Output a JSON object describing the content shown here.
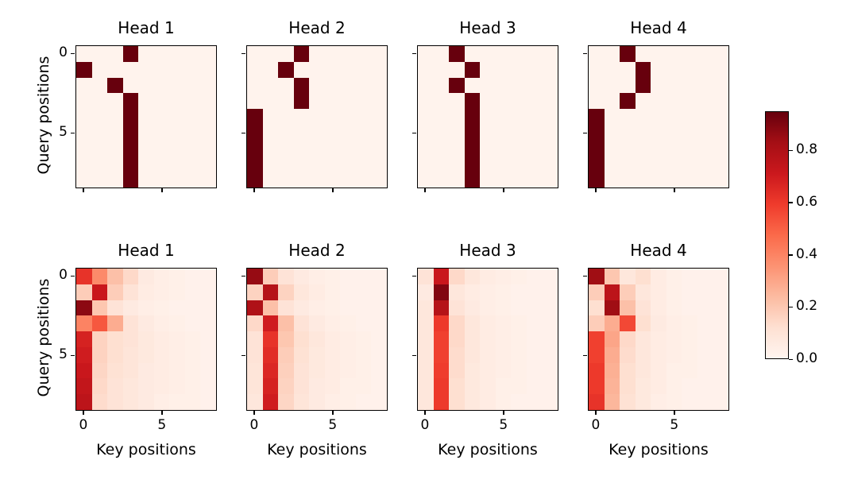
{
  "figure": {
    "background": "#ffffff",
    "type": "attention-heatmap-grid",
    "rows": 2,
    "cols": 4
  },
  "axes": {
    "ylabel": "Query positions",
    "xlabel": "Key positions",
    "xtick_labels": [
      "0",
      "5"
    ],
    "ytick_labels": [
      "0",
      "5"
    ],
    "xtick_positions": [
      0,
      5
    ],
    "ytick_positions": [
      0,
      5
    ],
    "n_rows": 9,
    "n_cols": 9
  },
  "colorbar": {
    "colormap": "Reds",
    "vmin": 0.0,
    "vmax": 0.95,
    "ticks": [
      {
        "label": "0.0",
        "value": 0.0
      },
      {
        "label": "0.2",
        "value": 0.2
      },
      {
        "label": "0.4",
        "value": 0.4
      },
      {
        "label": "0.6",
        "value": 0.6
      },
      {
        "label": "0.8",
        "value": 0.8
      }
    ]
  },
  "colors": {
    "cmap_stops": [
      [
        255,
        245,
        240
      ],
      [
        254,
        224,
        210
      ],
      [
        252,
        187,
        161
      ],
      [
        252,
        146,
        114
      ],
      [
        251,
        106,
        74
      ],
      [
        239,
        59,
        44
      ],
      [
        203,
        24,
        29
      ],
      [
        165,
        15,
        21
      ],
      [
        103,
        0,
        13
      ]
    ],
    "spine": "#000000"
  },
  "chart_data": [
    {
      "type": "heatmap",
      "title": "Head 1",
      "grid_row": 0,
      "grid_col": 0,
      "values": [
        [
          0.01,
          0.01,
          0.01,
          0.95,
          0.01,
          0.01,
          0.01,
          0.01,
          0.01
        ],
        [
          0.95,
          0.01,
          0.01,
          0.01,
          0.01,
          0.01,
          0.01,
          0.01,
          0.01
        ],
        [
          0.01,
          0.01,
          0.95,
          0.01,
          0.01,
          0.01,
          0.01,
          0.01,
          0.01
        ],
        [
          0.01,
          0.01,
          0.01,
          0.95,
          0.01,
          0.01,
          0.01,
          0.01,
          0.01
        ],
        [
          0.01,
          0.01,
          0.01,
          0.95,
          0.01,
          0.01,
          0.01,
          0.01,
          0.01
        ],
        [
          0.01,
          0.01,
          0.01,
          0.95,
          0.01,
          0.01,
          0.01,
          0.01,
          0.01
        ],
        [
          0.01,
          0.01,
          0.01,
          0.95,
          0.01,
          0.01,
          0.01,
          0.01,
          0.01
        ],
        [
          0.01,
          0.01,
          0.01,
          0.95,
          0.01,
          0.01,
          0.01,
          0.01,
          0.01
        ],
        [
          0.01,
          0.01,
          0.01,
          0.95,
          0.01,
          0.01,
          0.01,
          0.01,
          0.01
        ]
      ]
    },
    {
      "type": "heatmap",
      "title": "Head 2",
      "grid_row": 0,
      "grid_col": 1,
      "values": [
        [
          0.01,
          0.01,
          0.01,
          0.95,
          0.01,
          0.01,
          0.01,
          0.01,
          0.01
        ],
        [
          0.01,
          0.01,
          0.95,
          0.01,
          0.01,
          0.01,
          0.01,
          0.01,
          0.01
        ],
        [
          0.01,
          0.01,
          0.01,
          0.95,
          0.01,
          0.01,
          0.01,
          0.01,
          0.01
        ],
        [
          0.01,
          0.01,
          0.01,
          0.95,
          0.01,
          0.01,
          0.01,
          0.01,
          0.01
        ],
        [
          0.95,
          0.01,
          0.01,
          0.01,
          0.01,
          0.01,
          0.01,
          0.01,
          0.01
        ],
        [
          0.95,
          0.01,
          0.01,
          0.01,
          0.01,
          0.01,
          0.01,
          0.01,
          0.01
        ],
        [
          0.95,
          0.01,
          0.01,
          0.01,
          0.01,
          0.01,
          0.01,
          0.01,
          0.01
        ],
        [
          0.95,
          0.01,
          0.01,
          0.01,
          0.01,
          0.01,
          0.01,
          0.01,
          0.01
        ],
        [
          0.95,
          0.01,
          0.01,
          0.01,
          0.01,
          0.01,
          0.01,
          0.01,
          0.01
        ]
      ]
    },
    {
      "type": "heatmap",
      "title": "Head 3",
      "grid_row": 0,
      "grid_col": 2,
      "values": [
        [
          0.01,
          0.01,
          0.95,
          0.01,
          0.01,
          0.01,
          0.01,
          0.01,
          0.01
        ],
        [
          0.01,
          0.01,
          0.01,
          0.95,
          0.01,
          0.01,
          0.01,
          0.01,
          0.01
        ],
        [
          0.01,
          0.01,
          0.95,
          0.01,
          0.01,
          0.01,
          0.01,
          0.01,
          0.01
        ],
        [
          0.01,
          0.01,
          0.01,
          0.95,
          0.01,
          0.01,
          0.01,
          0.01,
          0.01
        ],
        [
          0.01,
          0.01,
          0.01,
          0.95,
          0.01,
          0.01,
          0.01,
          0.01,
          0.01
        ],
        [
          0.01,
          0.01,
          0.01,
          0.95,
          0.01,
          0.01,
          0.01,
          0.01,
          0.01
        ],
        [
          0.01,
          0.01,
          0.01,
          0.95,
          0.01,
          0.01,
          0.01,
          0.01,
          0.01
        ],
        [
          0.01,
          0.01,
          0.01,
          0.95,
          0.01,
          0.01,
          0.01,
          0.01,
          0.01
        ],
        [
          0.01,
          0.01,
          0.01,
          0.95,
          0.01,
          0.01,
          0.01,
          0.01,
          0.01
        ]
      ]
    },
    {
      "type": "heatmap",
      "title": "Head 4",
      "grid_row": 0,
      "grid_col": 3,
      "values": [
        [
          0.01,
          0.01,
          0.95,
          0.01,
          0.01,
          0.01,
          0.01,
          0.01,
          0.01
        ],
        [
          0.01,
          0.01,
          0.01,
          0.95,
          0.01,
          0.01,
          0.01,
          0.01,
          0.01
        ],
        [
          0.01,
          0.01,
          0.01,
          0.95,
          0.01,
          0.01,
          0.01,
          0.01,
          0.01
        ],
        [
          0.01,
          0.01,
          0.95,
          0.01,
          0.01,
          0.01,
          0.01,
          0.01,
          0.01
        ],
        [
          0.95,
          0.01,
          0.01,
          0.01,
          0.01,
          0.01,
          0.01,
          0.01,
          0.01
        ],
        [
          0.95,
          0.01,
          0.01,
          0.01,
          0.01,
          0.01,
          0.01,
          0.01,
          0.01
        ],
        [
          0.95,
          0.01,
          0.01,
          0.01,
          0.01,
          0.01,
          0.01,
          0.01,
          0.01
        ],
        [
          0.95,
          0.01,
          0.01,
          0.01,
          0.01,
          0.01,
          0.01,
          0.01,
          0.01
        ],
        [
          0.95,
          0.01,
          0.01,
          0.01,
          0.01,
          0.01,
          0.01,
          0.01,
          0.01
        ]
      ]
    },
    {
      "type": "heatmap",
      "title": "Head 1",
      "grid_row": 1,
      "grid_col": 0,
      "values": [
        [
          0.62,
          0.38,
          0.22,
          0.14,
          0.06,
          0.04,
          0.03,
          0.02,
          0.02
        ],
        [
          0.18,
          0.72,
          0.18,
          0.1,
          0.05,
          0.04,
          0.03,
          0.02,
          0.02
        ],
        [
          0.88,
          0.2,
          0.1,
          0.06,
          0.04,
          0.03,
          0.02,
          0.02,
          0.02
        ],
        [
          0.4,
          0.52,
          0.28,
          0.1,
          0.06,
          0.04,
          0.03,
          0.02,
          0.02
        ],
        [
          0.68,
          0.16,
          0.12,
          0.1,
          0.07,
          0.05,
          0.04,
          0.03,
          0.02
        ],
        [
          0.7,
          0.16,
          0.12,
          0.09,
          0.07,
          0.05,
          0.04,
          0.03,
          0.02
        ],
        [
          0.72,
          0.15,
          0.11,
          0.09,
          0.06,
          0.05,
          0.04,
          0.03,
          0.02
        ],
        [
          0.74,
          0.14,
          0.1,
          0.08,
          0.06,
          0.05,
          0.04,
          0.03,
          0.02
        ],
        [
          0.76,
          0.13,
          0.1,
          0.08,
          0.06,
          0.04,
          0.03,
          0.03,
          0.02
        ]
      ]
    },
    {
      "type": "heatmap",
      "title": "Head 2",
      "grid_row": 1,
      "grid_col": 1,
      "values": [
        [
          0.86,
          0.18,
          0.1,
          0.06,
          0.04,
          0.03,
          0.02,
          0.02,
          0.02
        ],
        [
          0.16,
          0.78,
          0.16,
          0.08,
          0.05,
          0.03,
          0.02,
          0.02,
          0.02
        ],
        [
          0.8,
          0.22,
          0.1,
          0.06,
          0.04,
          0.03,
          0.02,
          0.02,
          0.02
        ],
        [
          0.14,
          0.7,
          0.22,
          0.1,
          0.06,
          0.04,
          0.03,
          0.02,
          0.02
        ],
        [
          0.1,
          0.62,
          0.2,
          0.12,
          0.08,
          0.05,
          0.04,
          0.03,
          0.02
        ],
        [
          0.1,
          0.64,
          0.18,
          0.11,
          0.07,
          0.05,
          0.04,
          0.03,
          0.02
        ],
        [
          0.09,
          0.66,
          0.17,
          0.1,
          0.07,
          0.05,
          0.04,
          0.03,
          0.02
        ],
        [
          0.09,
          0.68,
          0.16,
          0.1,
          0.06,
          0.05,
          0.03,
          0.03,
          0.02
        ],
        [
          0.08,
          0.7,
          0.15,
          0.09,
          0.06,
          0.04,
          0.03,
          0.02,
          0.02
        ]
      ]
    },
    {
      "type": "heatmap",
      "title": "Head 3",
      "grid_row": 1,
      "grid_col": 2,
      "values": [
        [
          0.1,
          0.72,
          0.14,
          0.08,
          0.05,
          0.04,
          0.03,
          0.02,
          0.02
        ],
        [
          0.06,
          0.9,
          0.08,
          0.05,
          0.04,
          0.03,
          0.02,
          0.02,
          0.02
        ],
        [
          0.08,
          0.78,
          0.1,
          0.06,
          0.04,
          0.03,
          0.02,
          0.02,
          0.02
        ],
        [
          0.08,
          0.6,
          0.14,
          0.08,
          0.05,
          0.04,
          0.03,
          0.02,
          0.02
        ],
        [
          0.08,
          0.58,
          0.14,
          0.08,
          0.05,
          0.04,
          0.03,
          0.02,
          0.02
        ],
        [
          0.08,
          0.58,
          0.13,
          0.08,
          0.05,
          0.04,
          0.03,
          0.02,
          0.02
        ],
        [
          0.08,
          0.59,
          0.13,
          0.07,
          0.05,
          0.04,
          0.03,
          0.02,
          0.02
        ],
        [
          0.08,
          0.6,
          0.12,
          0.07,
          0.05,
          0.03,
          0.03,
          0.02,
          0.02
        ],
        [
          0.08,
          0.6,
          0.12,
          0.07,
          0.05,
          0.03,
          0.02,
          0.02,
          0.02
        ]
      ]
    },
    {
      "type": "heatmap",
      "title": "Head 4",
      "grid_row": 1,
      "grid_col": 3,
      "values": [
        [
          0.84,
          0.2,
          0.08,
          0.12,
          0.05,
          0.03,
          0.02,
          0.02,
          0.02
        ],
        [
          0.18,
          0.76,
          0.18,
          0.08,
          0.05,
          0.03,
          0.02,
          0.02,
          0.02
        ],
        [
          0.12,
          0.84,
          0.22,
          0.1,
          0.05,
          0.03,
          0.02,
          0.02,
          0.02
        ],
        [
          0.18,
          0.28,
          0.56,
          0.12,
          0.06,
          0.04,
          0.03,
          0.02,
          0.02
        ],
        [
          0.58,
          0.3,
          0.14,
          0.08,
          0.05,
          0.04,
          0.03,
          0.02,
          0.02
        ],
        [
          0.58,
          0.28,
          0.13,
          0.08,
          0.05,
          0.04,
          0.03,
          0.02,
          0.02
        ],
        [
          0.6,
          0.27,
          0.12,
          0.08,
          0.05,
          0.03,
          0.03,
          0.02,
          0.02
        ],
        [
          0.6,
          0.26,
          0.12,
          0.07,
          0.05,
          0.03,
          0.02,
          0.02,
          0.02
        ],
        [
          0.62,
          0.25,
          0.11,
          0.07,
          0.04,
          0.03,
          0.02,
          0.02,
          0.02
        ]
      ]
    }
  ]
}
